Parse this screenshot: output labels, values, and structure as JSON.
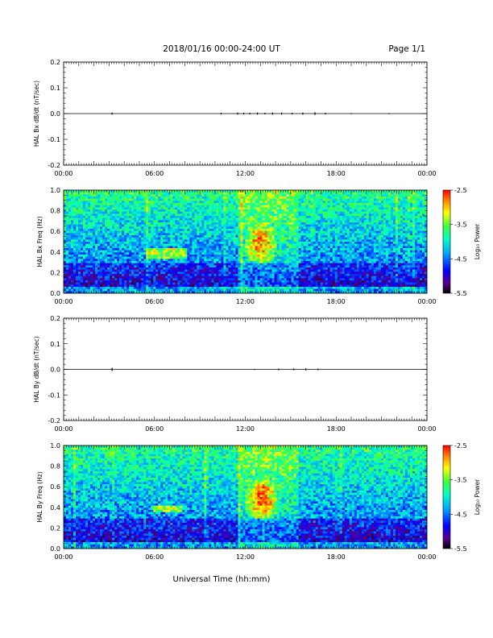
{
  "header": {
    "title": "2018/01/16  00:00-24:00 UT",
    "page": "Page 1/1"
  },
  "chart_data": [
    {
      "type": "line",
      "panel": "bx-timeseries",
      "ylabel": "HAL Bx dB/dt (nT/sec)",
      "ylim": [
        -0.2,
        0.2
      ],
      "yticks": [
        "0.2",
        "0.1",
        "0.0",
        "-0.1",
        "-0.2"
      ],
      "xlim": [
        0,
        24
      ],
      "xticks": [
        "00:00",
        "06:00",
        "12:00",
        "18:00",
        "00:00"
      ],
      "baseline": 0.0,
      "spikes": [
        [
          3.2,
          0.004
        ],
        [
          10.4,
          0.003
        ],
        [
          11.5,
          0.004
        ],
        [
          11.9,
          0.003
        ],
        [
          12.3,
          0.003
        ],
        [
          12.8,
          0.004
        ],
        [
          13.3,
          0.003
        ],
        [
          13.8,
          0.004
        ],
        [
          14.4,
          0.004
        ],
        [
          15.1,
          0.003
        ],
        [
          15.8,
          0.004
        ],
        [
          16.6,
          0.005
        ],
        [
          17.3,
          0.003
        ],
        [
          19.0,
          0.002
        ],
        [
          21.5,
          0.002
        ]
      ]
    },
    {
      "type": "heatmap",
      "panel": "bx-spectrogram",
      "ylabel": "HAL Bx Freq (Hz)",
      "ylim": [
        0,
        1.0
      ],
      "yticks": [
        "1.0",
        "0.8",
        "0.6",
        "0.4",
        "0.2",
        "0.0"
      ],
      "xlim": [
        0,
        24
      ],
      "xticks": [
        "00:00",
        "06:00",
        "12:00",
        "18:00",
        "00:00"
      ],
      "colorbar": {
        "label": "Log₁₀ Power",
        "range": [
          -5.5,
          -2.5
        ],
        "ticks": [
          "-2.5",
          "-3.5",
          "-4.5",
          "-5.5"
        ]
      },
      "features": {
        "hotspot": {
          "t": [
            12.0,
            14.0
          ],
          "f": [
            0.3,
            0.75
          ],
          "peak": -2.7
        },
        "band_06": {
          "t": [
            5.5,
            8.2
          ],
          "f": [
            0.33,
            0.43
          ]
        }
      }
    },
    {
      "type": "line",
      "panel": "by-timeseries",
      "ylabel": "HAL By dB/dt (nT/sec)",
      "ylim": [
        -0.2,
        0.2
      ],
      "yticks": [
        "0.2",
        "0.1",
        "0.0",
        "-0.1",
        "-0.2"
      ],
      "xlim": [
        0,
        24
      ],
      "xticks": [
        "00:00",
        "06:00",
        "12:00",
        "18:00",
        "00:00"
      ],
      "baseline": 0.0,
      "spikes": [
        [
          3.2,
          0.006
        ],
        [
          12.6,
          0.002
        ],
        [
          14.2,
          0.003
        ],
        [
          15.2,
          0.003
        ],
        [
          16.0,
          0.004
        ],
        [
          16.8,
          0.003
        ]
      ]
    },
    {
      "type": "heatmap",
      "panel": "by-spectrogram",
      "ylabel": "HAL By Freq (Hz)",
      "ylim": [
        0,
        1.0
      ],
      "yticks": [
        "1.0",
        "0.8",
        "0.6",
        "0.4",
        "0.2",
        "0.0"
      ],
      "xlim": [
        0,
        24
      ],
      "xticks": [
        "00:00",
        "06:00",
        "12:00",
        "18:00",
        "00:00"
      ],
      "colorbar": {
        "label": "Log₁₀ Power",
        "range": [
          -5.5,
          -2.5
        ],
        "ticks": [
          "-2.5",
          "-3.5",
          "-4.5",
          "-5.5"
        ]
      },
      "features": {
        "hotspot": {
          "t": [
            12.0,
            14.2
          ],
          "f": [
            0.3,
            0.72
          ],
          "peak": -2.6
        },
        "band_06": {
          "t": [
            6.0,
            7.8
          ],
          "f": [
            0.35,
            0.42
          ]
        }
      }
    }
  ],
  "footer": {
    "xlabel": "Universal Time (hh:mm)"
  }
}
